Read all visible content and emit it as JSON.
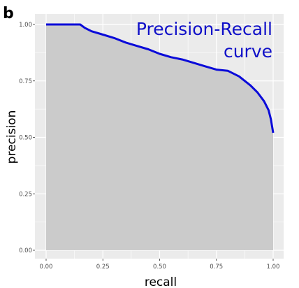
{
  "panel_label": "b",
  "chart_data": {
    "type": "area",
    "annotation": [
      "Precision-Recall",
      "curve"
    ],
    "xlabel": "recall",
    "ylabel": "precision",
    "xlim": [
      0,
      1
    ],
    "ylim": [
      0,
      1
    ],
    "x_ticks": [
      "0.00",
      "0.25",
      "0.50",
      "0.75",
      "1.00"
    ],
    "y_ticks": [
      "0.00",
      "0.25",
      "0.50",
      "0.75",
      "1.00"
    ],
    "grid": true,
    "colors": {
      "line": "#0b0bd9",
      "fill": "#cbcbcb",
      "panel": "#ebebeb",
      "grid": "#ffffff",
      "annotation": "#1010c8"
    },
    "series": [
      {
        "x": [
          0,
          0.15,
          0.17,
          0.2,
          0.25,
          0.3,
          0.35,
          0.4,
          0.45,
          0.5,
          0.55,
          0.6,
          0.65,
          0.7,
          0.75,
          0.8,
          0.85,
          0.9,
          0.93,
          0.96,
          0.98,
          0.99,
          1.0
        ],
        "y": [
          1.0,
          1.0,
          0.985,
          0.97,
          0.955,
          0.94,
          0.92,
          0.905,
          0.89,
          0.87,
          0.855,
          0.845,
          0.83,
          0.815,
          0.8,
          0.795,
          0.77,
          0.73,
          0.7,
          0.66,
          0.62,
          0.58,
          0.52
        ]
      }
    ]
  }
}
